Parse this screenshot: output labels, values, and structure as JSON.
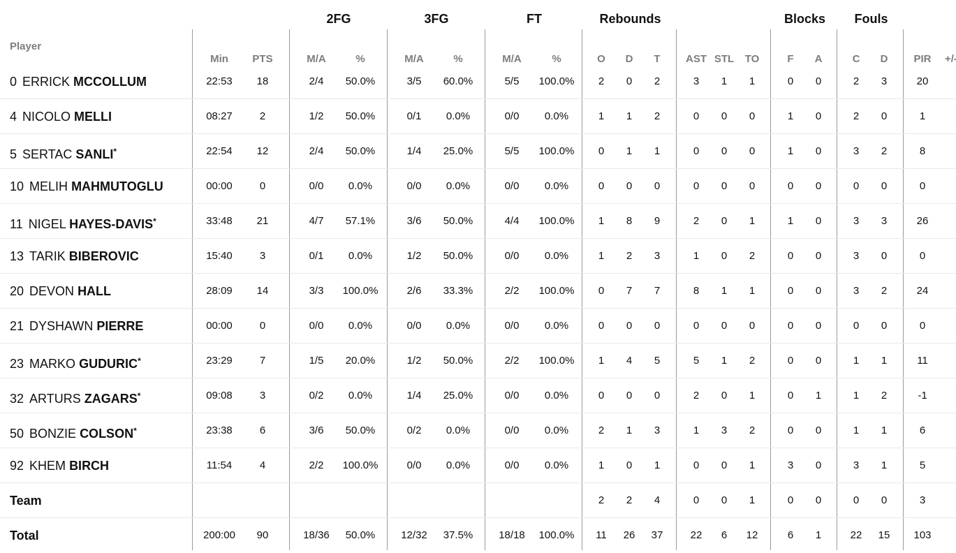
{
  "group_headers": [
    "2FG",
    "3FG",
    "FT",
    "Rebounds",
    "Blocks",
    "Fouls"
  ],
  "player_header": "Player",
  "columns": [
    "Min",
    "PTS",
    "M/A",
    "%",
    "M/A",
    "%",
    "M/A",
    "%",
    "O",
    "D",
    "T",
    "AST",
    "STL",
    "TO",
    "F",
    "A",
    "C",
    "D",
    "PIR",
    "+/-"
  ],
  "players": [
    {
      "num": "0",
      "first": "ERRICK",
      "last": "MCCOLLUM",
      "starter": false,
      "stats": [
        "22:53",
        "18",
        "2/4",
        "50.0%",
        "3/5",
        "60.0%",
        "5/5",
        "100.0%",
        "2",
        "0",
        "2",
        "3",
        "1",
        "1",
        "0",
        "0",
        "2",
        "3",
        "20",
        ""
      ]
    },
    {
      "num": "4",
      "first": "NICOLO",
      "last": "MELLI",
      "starter": false,
      "stats": [
        "08:27",
        "2",
        "1/2",
        "50.0%",
        "0/1",
        "0.0%",
        "0/0",
        "0.0%",
        "1",
        "1",
        "2",
        "0",
        "0",
        "0",
        "1",
        "0",
        "2",
        "0",
        "1",
        ""
      ]
    },
    {
      "num": "5",
      "first": "SERTAC",
      "last": "SANLI",
      "starter": true,
      "stats": [
        "22:54",
        "12",
        "2/4",
        "50.0%",
        "1/4",
        "25.0%",
        "5/5",
        "100.0%",
        "0",
        "1",
        "1",
        "0",
        "0",
        "0",
        "1",
        "0",
        "3",
        "2",
        "8",
        ""
      ]
    },
    {
      "num": "10",
      "first": "MELIH",
      "last": "MAHMUTOGLU",
      "starter": false,
      "stats": [
        "00:00",
        "0",
        "0/0",
        "0.0%",
        "0/0",
        "0.0%",
        "0/0",
        "0.0%",
        "0",
        "0",
        "0",
        "0",
        "0",
        "0",
        "0",
        "0",
        "0",
        "0",
        "0",
        ""
      ]
    },
    {
      "num": "11",
      "first": "NIGEL",
      "last": "HAYES-DAVIS",
      "starter": true,
      "stats": [
        "33:48",
        "21",
        "4/7",
        "57.1%",
        "3/6",
        "50.0%",
        "4/4",
        "100.0%",
        "1",
        "8",
        "9",
        "2",
        "0",
        "1",
        "1",
        "0",
        "3",
        "3",
        "26",
        ""
      ]
    },
    {
      "num": "13",
      "first": "TARIK",
      "last": "BIBEROVIC",
      "starter": false,
      "stats": [
        "15:40",
        "3",
        "0/1",
        "0.0%",
        "1/2",
        "50.0%",
        "0/0",
        "0.0%",
        "1",
        "2",
        "3",
        "1",
        "0",
        "2",
        "0",
        "0",
        "3",
        "0",
        "0",
        ""
      ]
    },
    {
      "num": "20",
      "first": "DEVON",
      "last": "HALL",
      "starter": false,
      "stats": [
        "28:09",
        "14",
        "3/3",
        "100.0%",
        "2/6",
        "33.3%",
        "2/2",
        "100.0%",
        "0",
        "7",
        "7",
        "8",
        "1",
        "1",
        "0",
        "0",
        "3",
        "2",
        "24",
        ""
      ]
    },
    {
      "num": "21",
      "first": "DYSHAWN",
      "last": "PIERRE",
      "starter": false,
      "stats": [
        "00:00",
        "0",
        "0/0",
        "0.0%",
        "0/0",
        "0.0%",
        "0/0",
        "0.0%",
        "0",
        "0",
        "0",
        "0",
        "0",
        "0",
        "0",
        "0",
        "0",
        "0",
        "0",
        ""
      ]
    },
    {
      "num": "23",
      "first": "MARKO",
      "last": "GUDURIC",
      "starter": true,
      "stats": [
        "23:29",
        "7",
        "1/5",
        "20.0%",
        "1/2",
        "50.0%",
        "2/2",
        "100.0%",
        "1",
        "4",
        "5",
        "5",
        "1",
        "2",
        "0",
        "0",
        "1",
        "1",
        "11",
        ""
      ]
    },
    {
      "num": "32",
      "first": "ARTURS",
      "last": "ZAGARS",
      "starter": true,
      "stats": [
        "09:08",
        "3",
        "0/2",
        "0.0%",
        "1/4",
        "25.0%",
        "0/0",
        "0.0%",
        "0",
        "0",
        "0",
        "2",
        "0",
        "1",
        "0",
        "1",
        "1",
        "2",
        "-1",
        ""
      ]
    },
    {
      "num": "50",
      "first": "BONZIE",
      "last": "COLSON",
      "starter": true,
      "stats": [
        "23:38",
        "6",
        "3/6",
        "50.0%",
        "0/2",
        "0.0%",
        "0/0",
        "0.0%",
        "2",
        "1",
        "3",
        "1",
        "3",
        "2",
        "0",
        "0",
        "1",
        "1",
        "6",
        ""
      ]
    },
    {
      "num": "92",
      "first": "KHEM",
      "last": "BIRCH",
      "starter": false,
      "stats": [
        "11:54",
        "4",
        "2/2",
        "100.0%",
        "0/0",
        "0.0%",
        "0/0",
        "0.0%",
        "1",
        "0",
        "1",
        "0",
        "0",
        "1",
        "3",
        "0",
        "3",
        "1",
        "5",
        ""
      ]
    }
  ],
  "team_row": {
    "label": "Team",
    "stats": [
      "",
      "",
      "",
      "",
      "",
      "",
      "",
      "",
      "2",
      "2",
      "4",
      "0",
      "0",
      "1",
      "0",
      "0",
      "0",
      "0",
      "3",
      ""
    ]
  },
  "total_row": {
    "label": "Total",
    "stats": [
      "200:00",
      "90",
      "18/36",
      "50.0%",
      "12/32",
      "37.5%",
      "18/18",
      "100.0%",
      "11",
      "26",
      "37",
      "22",
      "6",
      "12",
      "6",
      "1",
      "22",
      "15",
      "103",
      ""
    ]
  },
  "star_mark": "*"
}
